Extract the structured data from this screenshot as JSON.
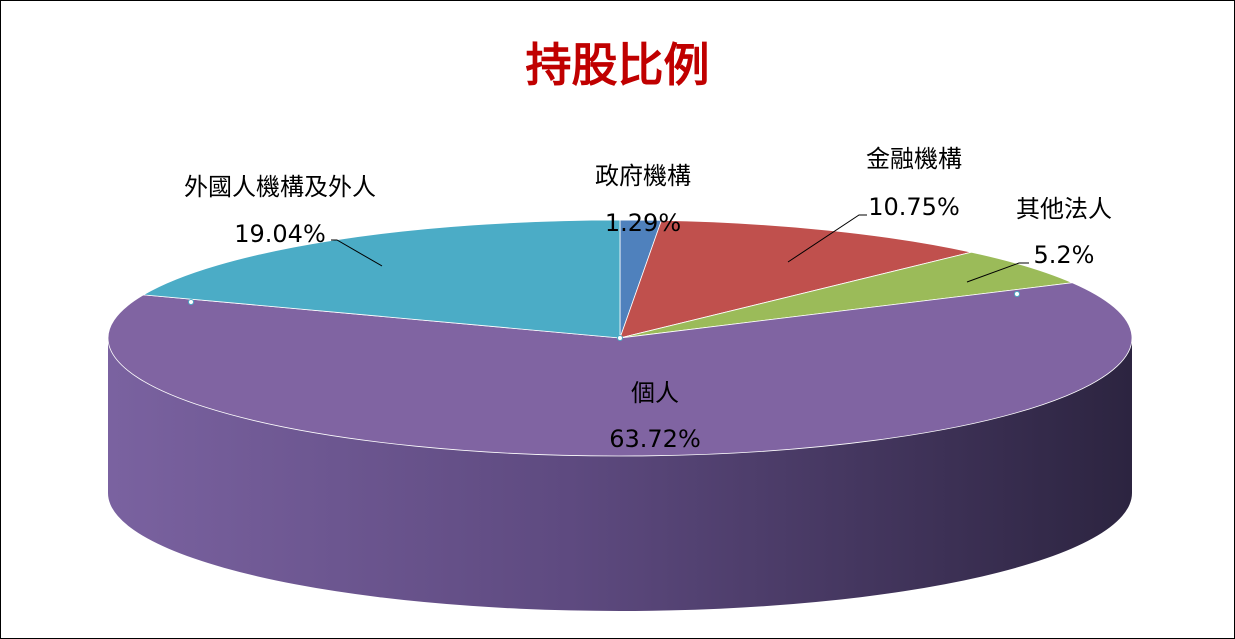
{
  "chart_data": {
    "type": "pie",
    "title": "持股比例",
    "slices": [
      {
        "label": "政府機構",
        "value": 1.29,
        "value_label": "1.29%",
        "color": "#4f81bd"
      },
      {
        "label": "金融機構",
        "value": 10.75,
        "value_label": "10.75%",
        "color": "#c0504d"
      },
      {
        "label": "其他法人",
        "value": 5.2,
        "value_label": "5.2%",
        "color": "#9bbb59"
      },
      {
        "label": "個人",
        "value": 63.72,
        "value_label": "63.72%",
        "color": "#8064a2"
      },
      {
        "label": "外國人機構及外人",
        "value": 19.04,
        "value_label": "19.04%",
        "color": "#4bacc6"
      }
    ],
    "start_angle": "12 o'clock",
    "direction": "clockwise",
    "style": "3d-perspective",
    "legend": "none"
  }
}
